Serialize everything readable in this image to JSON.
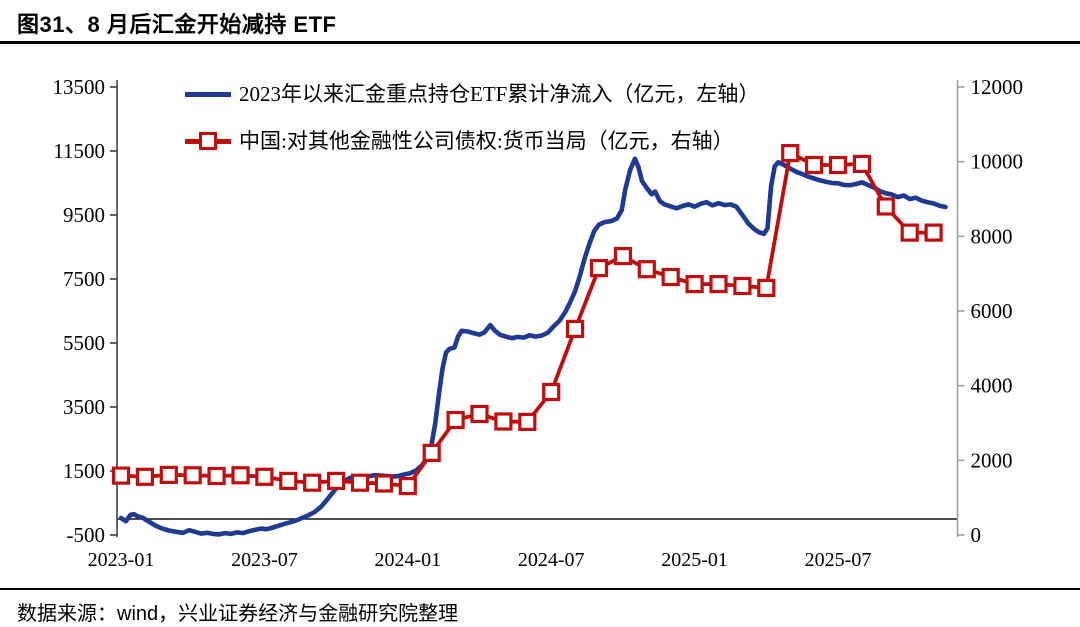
{
  "page": {
    "title": "图31、8 月后汇金开始减持 ETF",
    "source_note": "数据来源：wind，兴业证券经济与金融研究院整理"
  },
  "chart_data": {
    "type": "line",
    "title": "图31、8 月后汇金开始减持 ETF",
    "grid": false,
    "legend_position": "top",
    "colors": {
      "series_left": "#1f3a93",
      "series_right": "#c00d0d",
      "left_axis": "#3f3f3f",
      "right_axis": "#a0a0a0",
      "zero_line": "#111111",
      "text": "#000000"
    },
    "x_axis": {
      "tick_labels": [
        "2023-01",
        "2023-07",
        "2024-01",
        "2024-07",
        "2025-01",
        "2025-07"
      ],
      "tick_month_index": [
        0,
        6,
        12,
        18,
        24,
        30
      ],
      "start_month": "2023-01",
      "end_month": "2025-11"
    },
    "left_axis": {
      "min": -500,
      "max": 13500,
      "ticks": [
        -500,
        1500,
        3500,
        5500,
        7500,
        9500,
        11500,
        13500
      ],
      "unit": "亿元"
    },
    "right_axis": {
      "min": 0,
      "max": 12000,
      "ticks": [
        0,
        2000,
        4000,
        6000,
        8000,
        10000,
        12000
      ],
      "unit": "亿元"
    },
    "series": [
      {
        "name": "2023年以来汇金重点持仓ETF累计净流入（亿元，左轴）",
        "axis": "left",
        "color": "#1f3a93",
        "line_width": 4.6,
        "marker": "none",
        "points_note": "x = months since 2023-01 (fractional, high-frequency line)",
        "points": [
          [
            0,
            30
          ],
          [
            0.2,
            -70
          ],
          [
            0.4,
            130
          ],
          [
            0.55,
            150
          ],
          [
            0.7,
            80
          ],
          [
            0.9,
            40
          ],
          [
            1.1,
            -50
          ],
          [
            1.4,
            -190
          ],
          [
            1.7,
            -290
          ],
          [
            2,
            -360
          ],
          [
            2.3,
            -400
          ],
          [
            2.6,
            -430
          ],
          [
            2.85,
            -350
          ],
          [
            3.1,
            -400
          ],
          [
            3.35,
            -455
          ],
          [
            3.6,
            -430
          ],
          [
            3.85,
            -465
          ],
          [
            4.1,
            -480
          ],
          [
            4.35,
            -440
          ],
          [
            4.6,
            -465
          ],
          [
            4.85,
            -420
          ],
          [
            5.1,
            -440
          ],
          [
            5.35,
            -385
          ],
          [
            5.6,
            -340
          ],
          [
            5.85,
            -300
          ],
          [
            6.1,
            -320
          ],
          [
            6.35,
            -270
          ],
          [
            6.6,
            -210
          ],
          [
            6.85,
            -150
          ],
          [
            7.1,
            -100
          ],
          [
            7.35,
            -40
          ],
          [
            7.6,
            40
          ],
          [
            7.85,
            120
          ],
          [
            8.1,
            220
          ],
          [
            8.35,
            370
          ],
          [
            8.6,
            580
          ],
          [
            8.85,
            820
          ],
          [
            9.1,
            1040
          ],
          [
            9.35,
            1190
          ],
          [
            9.6,
            1290
          ],
          [
            9.85,
            1330
          ],
          [
            10.1,
            1310
          ],
          [
            10.35,
            1330
          ],
          [
            10.6,
            1370
          ],
          [
            10.85,
            1360
          ],
          [
            11.1,
            1340
          ],
          [
            11.35,
            1325
          ],
          [
            11.6,
            1340
          ],
          [
            11.85,
            1390
          ],
          [
            12.1,
            1430
          ],
          [
            12.35,
            1520
          ],
          [
            12.6,
            1680
          ],
          [
            12.8,
            1900
          ],
          [
            13,
            2350
          ],
          [
            13.15,
            3000
          ],
          [
            13.3,
            3900
          ],
          [
            13.45,
            4700
          ],
          [
            13.6,
            5200
          ],
          [
            13.75,
            5320
          ],
          [
            13.95,
            5360
          ],
          [
            14.1,
            5700
          ],
          [
            14.25,
            5880
          ],
          [
            14.5,
            5860
          ],
          [
            14.75,
            5810
          ],
          [
            15,
            5760
          ],
          [
            15.2,
            5830
          ],
          [
            15.45,
            6060
          ],
          [
            15.65,
            5880
          ],
          [
            15.85,
            5760
          ],
          [
            16.1,
            5700
          ],
          [
            16.35,
            5650
          ],
          [
            16.6,
            5690
          ],
          [
            16.85,
            5670
          ],
          [
            17.1,
            5740
          ],
          [
            17.35,
            5700
          ],
          [
            17.6,
            5730
          ],
          [
            17.85,
            5820
          ],
          [
            18.1,
            6020
          ],
          [
            18.35,
            6200
          ],
          [
            18.6,
            6480
          ],
          [
            18.8,
            6780
          ],
          [
            19,
            7120
          ],
          [
            19.2,
            7600
          ],
          [
            19.4,
            8150
          ],
          [
            19.6,
            8600
          ],
          [
            19.8,
            9000
          ],
          [
            20,
            9200
          ],
          [
            20.25,
            9280
          ],
          [
            20.5,
            9310
          ],
          [
            20.75,
            9390
          ],
          [
            20.95,
            9650
          ],
          [
            21.1,
            10300
          ],
          [
            21.3,
            10900
          ],
          [
            21.5,
            11260
          ],
          [
            21.65,
            11000
          ],
          [
            21.8,
            10560
          ],
          [
            22,
            10340
          ],
          [
            22.2,
            10150
          ],
          [
            22.35,
            10230
          ],
          [
            22.55,
            9930
          ],
          [
            22.75,
            9830
          ],
          [
            23,
            9770
          ],
          [
            23.25,
            9710
          ],
          [
            23.5,
            9780
          ],
          [
            23.75,
            9830
          ],
          [
            24,
            9760
          ],
          [
            24.25,
            9850
          ],
          [
            24.5,
            9900
          ],
          [
            24.75,
            9800
          ],
          [
            25,
            9870
          ],
          [
            25.25,
            9810
          ],
          [
            25.5,
            9830
          ],
          [
            25.75,
            9760
          ],
          [
            26,
            9500
          ],
          [
            26.25,
            9230
          ],
          [
            26.5,
            9060
          ],
          [
            26.7,
            8960
          ],
          [
            26.9,
            8910
          ],
          [
            27.05,
            9080
          ],
          [
            27.2,
            10400
          ],
          [
            27.35,
            11020
          ],
          [
            27.5,
            11150
          ],
          [
            27.75,
            11060
          ],
          [
            28,
            10950
          ],
          [
            28.25,
            10850
          ],
          [
            28.5,
            10780
          ],
          [
            28.75,
            10700
          ],
          [
            29,
            10640
          ],
          [
            29.25,
            10580
          ],
          [
            29.5,
            10540
          ],
          [
            29.75,
            10500
          ],
          [
            30,
            10490
          ],
          [
            30.25,
            10440
          ],
          [
            30.5,
            10430
          ],
          [
            30.75,
            10470
          ],
          [
            31,
            10520
          ],
          [
            31.25,
            10440
          ],
          [
            31.5,
            10360
          ],
          [
            31.75,
            10250
          ],
          [
            32,
            10180
          ],
          [
            32.25,
            10140
          ],
          [
            32.5,
            10060
          ],
          [
            32.75,
            10110
          ],
          [
            33,
            10000
          ],
          [
            33.25,
            10040
          ],
          [
            33.5,
            9950
          ],
          [
            33.75,
            9900
          ],
          [
            34,
            9860
          ],
          [
            34.25,
            9790
          ],
          [
            34.5,
            9750
          ]
        ]
      },
      {
        "name": "中国:对其他金融性公司债权:货币当局（亿元，右轴）",
        "axis": "right",
        "color": "#c00d0d",
        "line_width": 3.8,
        "marker": "open-square",
        "marker_size": 15,
        "months": [
          "2023-01",
          "2023-02",
          "2023-03",
          "2023-04",
          "2023-05",
          "2023-06",
          "2023-07",
          "2023-08",
          "2023-09",
          "2023-10",
          "2023-11",
          "2023-12",
          "2024-01",
          "2024-02",
          "2024-03",
          "2024-04",
          "2024-05",
          "2024-06",
          "2024-07",
          "2024-08",
          "2024-09",
          "2024-10",
          "2024-11",
          "2024-12",
          "2025-01",
          "2025-02",
          "2025-03",
          "2025-04",
          "2025-05",
          "2025-06",
          "2025-07",
          "2025-08",
          "2025-09",
          "2025-10",
          "2025-11"
        ],
        "values": [
          1590,
          1560,
          1610,
          1600,
          1580,
          1600,
          1560,
          1450,
          1400,
          1450,
          1400,
          1380,
          1310,
          2200,
          3080,
          3240,
          3040,
          3030,
          3830,
          5520,
          7150,
          7470,
          7120,
          6910,
          6720,
          6720,
          6670,
          6620,
          10230,
          9910,
          9910,
          9940,
          8800,
          8100,
          8100
        ]
      }
    ]
  }
}
